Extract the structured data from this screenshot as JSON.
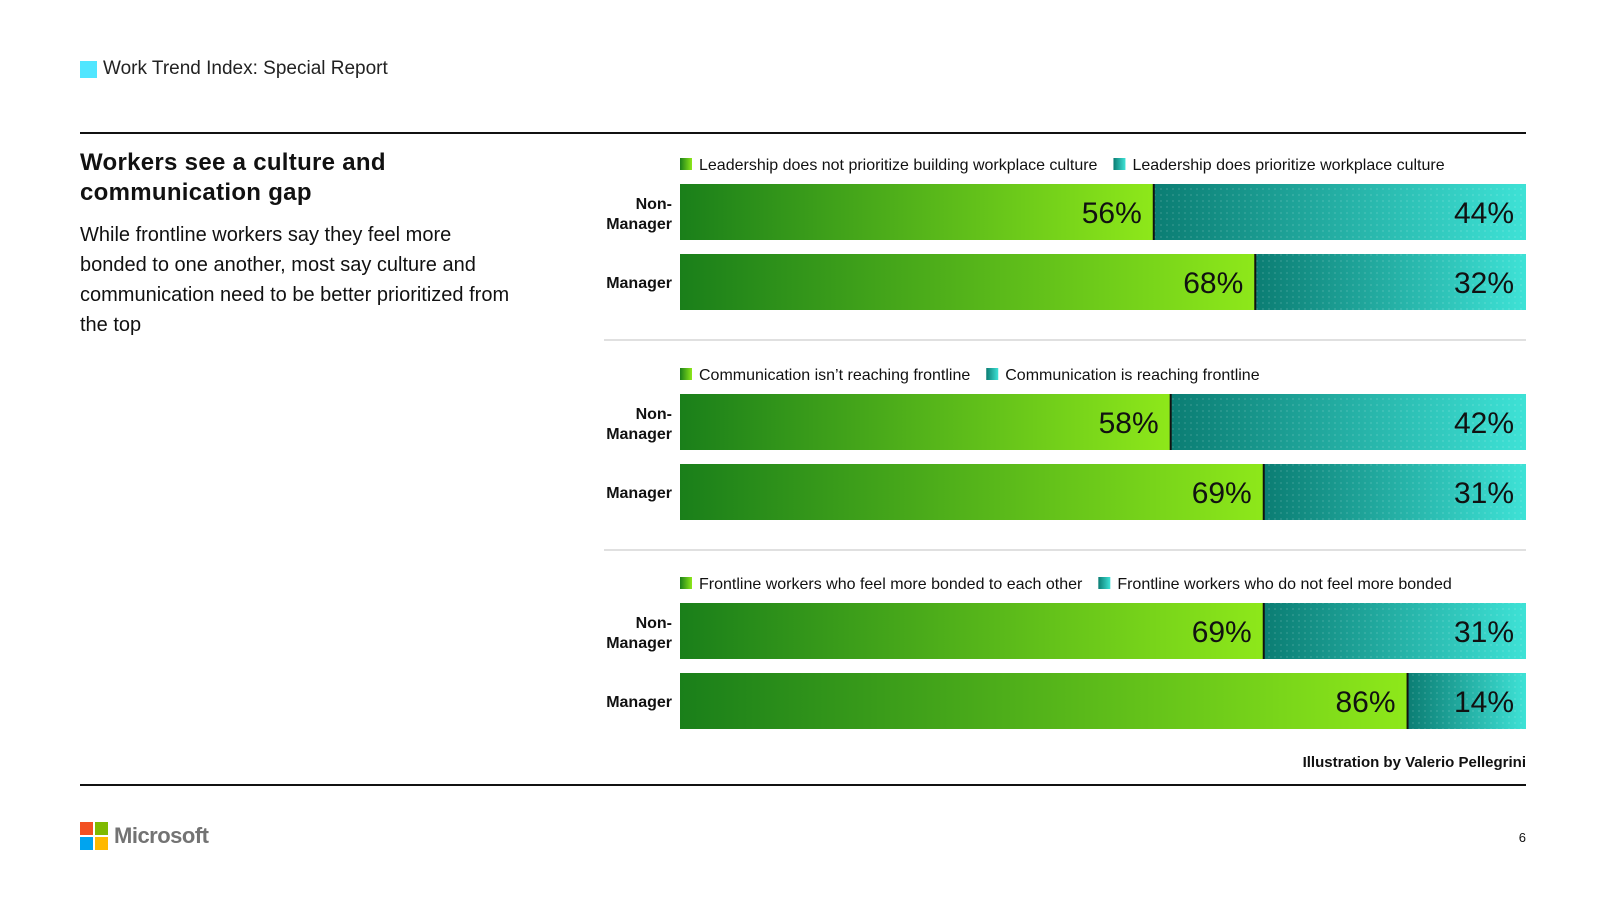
{
  "header": {
    "label": "Work Trend Index: Special Report",
    "accent_color": "#50e6ff"
  },
  "title": "Workers see a culture and communication gap",
  "description": "While frontline workers say they feel more bonded to one another, most say culture and communication need to be better prioritized from the top",
  "credit": "Illustration by Valerio Pellegrini",
  "brand": "Microsoft",
  "page_number": "6",
  "colors": {
    "green_dark": "#1a7f1a",
    "green_light": "#8ee81a",
    "teal_dark": "#0b7d73",
    "teal_light": "#3ee2d6"
  },
  "chart_data": [
    {
      "type": "bar",
      "stacked": true,
      "orientation": "horizontal",
      "categories": [
        "Non-Manager",
        "Manager"
      ],
      "series": [
        {
          "name": "Leadership does not prioritize building workplace culture",
          "values": [
            56,
            68
          ]
        },
        {
          "name": "Leadership does prioritize workplace culture",
          "values": [
            44,
            32
          ]
        }
      ],
      "unit": "%",
      "legend": "top"
    },
    {
      "type": "bar",
      "stacked": true,
      "orientation": "horizontal",
      "categories": [
        "Non-Manager",
        "Manager"
      ],
      "series": [
        {
          "name": "Communication isn’t reaching frontline",
          "values": [
            58,
            69
          ]
        },
        {
          "name": "Communication is reaching frontline",
          "values": [
            42,
            31
          ]
        }
      ],
      "unit": "%",
      "legend": "top"
    },
    {
      "type": "bar",
      "stacked": true,
      "orientation": "horizontal",
      "categories": [
        "Non-Manager",
        "Manager"
      ],
      "series": [
        {
          "name": "Frontline workers who feel more bonded to each other",
          "values": [
            69,
            86
          ]
        },
        {
          "name": "Frontline workers who do not feel more bonded",
          "values": [
            31,
            14
          ]
        }
      ],
      "unit": "%",
      "legend": "top"
    }
  ]
}
